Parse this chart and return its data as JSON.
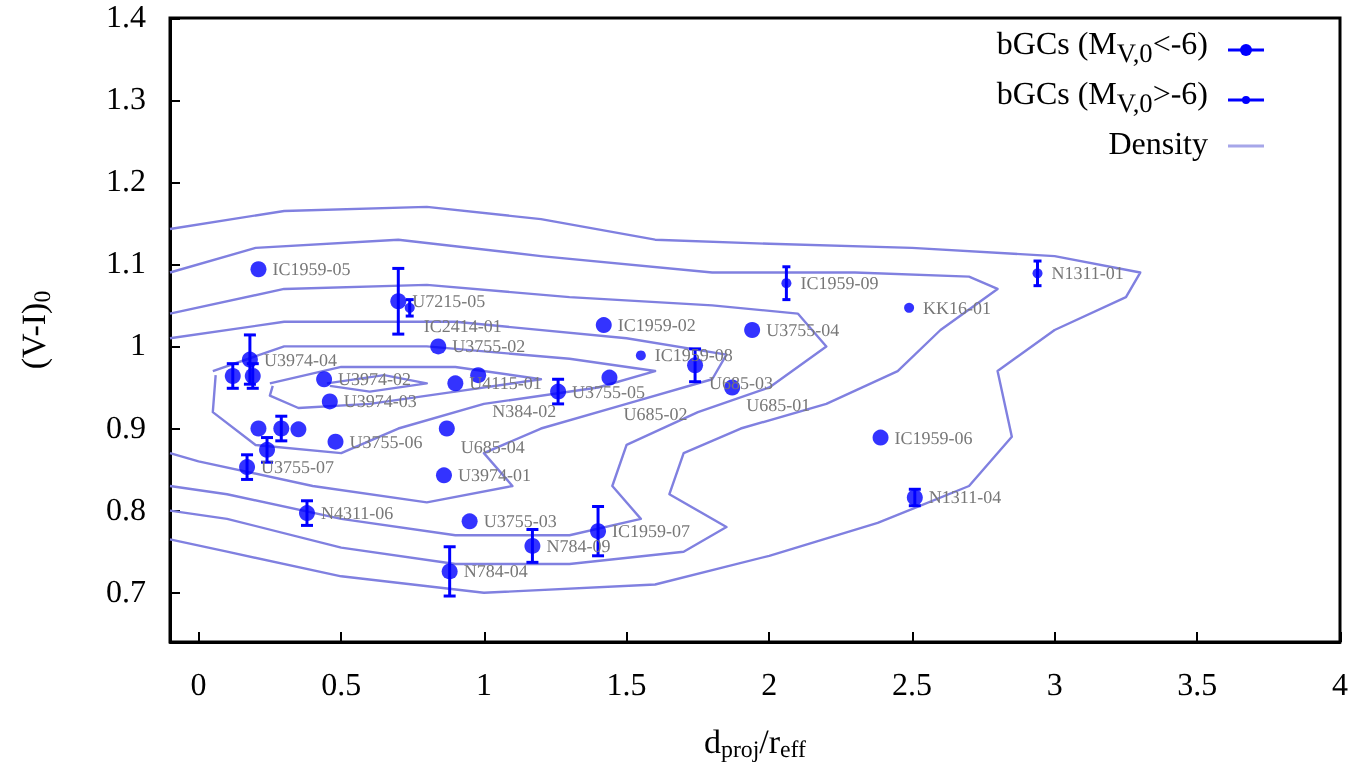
{
  "chart_data": {
    "type": "scatter",
    "xlabel": "d$_{proj}$/r$_{eff}$",
    "ylabel": "(V-I)$_{0}$",
    "xlim": [
      -0.1,
      4
    ],
    "ylim": [
      0.64,
      1.4
    ],
    "xticks": [
      0,
      0.5,
      1,
      1.5,
      2,
      2.5,
      3,
      3.5,
      4
    ],
    "yticks": [
      0.7,
      0.8,
      0.9,
      1,
      1.1,
      1.2,
      1.3,
      1.4
    ],
    "legend": "top right",
    "grid": false,
    "series": [
      {
        "name": "bGCs (M$_{V,0}$<-6)",
        "marker": "circle",
        "color": "#0000ff",
        "x": [
          0.21,
          0.7,
          0.84,
          0.18,
          0.12,
          0.19,
          0.44,
          0.46,
          0.9,
          0.98,
          1.26,
          0.21,
          0.29,
          0.35,
          0.24,
          0.48,
          0.17,
          0.87,
          0.86,
          0.38,
          0.95,
          1.17,
          0.88,
          1.4,
          1.42,
          1.94,
          1.74,
          1.44,
          1.87,
          2.39,
          2.51
        ],
        "values": [
          1.094,
          1.055,
          1.0,
          0.984,
          0.964,
          0.964,
          0.96,
          0.933,
          0.955,
          0.965,
          0.945,
          0.9,
          0.9,
          0.899,
          0.874,
          0.884,
          0.853,
          0.9,
          0.843,
          0.797,
          0.787,
          0.757,
          0.726,
          0.775,
          1.026,
          1.02,
          0.977,
          0.962,
          0.95,
          0.889,
          0.816
        ],
        "errors": [
          null,
          0.04,
          null,
          0.03,
          0.015,
          0.015,
          null,
          null,
          null,
          null,
          0.015,
          null,
          0.015,
          null,
          0.015,
          null,
          0.015,
          null,
          null,
          0.015,
          null,
          0.02,
          0.03,
          0.03,
          null,
          null,
          0.02,
          null,
          null,
          null,
          0.01
        ]
      },
      {
        "name": "bGCs (M$_{V,0}$>-6)",
        "marker": "circle",
        "color": "#0000ff",
        "x": [
          0.74,
          2.06,
          1.55,
          2.49,
          2.94
        ],
        "values": [
          1.047,
          1.077,
          0.989,
          1.047,
          1.089
        ],
        "errors": [
          0.01,
          0.02,
          null,
          null,
          0.015
        ]
      },
      {
        "name": "Density",
        "type": "line",
        "marker": "none",
        "color": "#8080e0",
        "x": [
          -0.1,
          0.3,
          0.8,
          1.2,
          1.6,
          2.0,
          2.5,
          3.0,
          3.3,
          3.25,
          3.0,
          2.8,
          2.85,
          2.7,
          2.38,
          2.0,
          1.6,
          1.0,
          0.5,
          0.1,
          -0.1,
          null,
          -0.1,
          0.2,
          0.7,
          1.2,
          1.8,
          2.3,
          2.7,
          2.8,
          2.6,
          2.45,
          2.2,
          1.9,
          1.7,
          1.65,
          1.85,
          1.7,
          1.3,
          0.9,
          0.5,
          0.1,
          -0.1,
          null,
          -0.1,
          0.3,
          0.8,
          1.3,
          1.8,
          2.1,
          2.2,
          2.0,
          1.75,
          1.5,
          1.45,
          1.55,
          1.3,
          0.9,
          0.5,
          0.1,
          -0.1,
          null,
          -0.1,
          0.3,
          0.9,
          1.5,
          1.85,
          1.8,
          1.5,
          1.2,
          1.0,
          1.1,
          0.8,
          0.4,
          0.0,
          -0.1,
          null,
          0.05,
          0.3,
          0.8,
          1.3,
          1.6,
          1.4,
          1.0,
          0.7,
          0.5,
          0.2,
          0.05,
          0.06,
          null,
          0.25,
          0.5,
          0.9,
          1.2,
          0.9,
          0.6,
          0.35,
          0.25,
          0.26,
          null,
          0.45,
          0.65,
          0.8,
          0.6,
          0.46
        ],
        "values": [
          1.143,
          1.165,
          1.17,
          1.155,
          1.13,
          1.125,
          1.12,
          1.11,
          1.09,
          1.06,
          1.02,
          0.97,
          0.89,
          0.83,
          0.785,
          0.745,
          0.71,
          0.7,
          0.72,
          0.75,
          0.765,
          null,
          1.09,
          1.12,
          1.13,
          1.11,
          1.09,
          1.09,
          1.085,
          1.07,
          1.02,
          0.97,
          0.93,
          0.9,
          0.87,
          0.82,
          0.78,
          0.75,
          0.735,
          0.735,
          0.755,
          0.79,
          0.8,
          null,
          1.04,
          1.07,
          1.075,
          1.06,
          1.05,
          1.04,
          1.0,
          0.95,
          0.92,
          0.88,
          0.83,
          0.79,
          0.77,
          0.77,
          0.79,
          0.82,
          0.83,
          null,
          1.01,
          1.03,
          1.03,
          1.01,
          0.99,
          0.96,
          0.93,
          0.9,
          0.87,
          0.83,
          0.81,
          0.83,
          0.86,
          0.87,
          null,
          0.97,
          1.0,
          1.0,
          0.985,
          0.97,
          0.95,
          0.93,
          0.9,
          0.87,
          0.88,
          0.92,
          0.965,
          null,
          0.955,
          0.975,
          0.975,
          0.96,
          0.945,
          0.93,
          0.925,
          0.94,
          0.952,
          null,
          0.955,
          0.965,
          0.955,
          0.945,
          0.952
        ]
      }
    ],
    "annotations": [
      {
        "text": "IC1959-05",
        "x": 0.21,
        "y": 1.094
      },
      {
        "text": "U7215-05",
        "x": 0.7,
        "y": 1.055
      },
      {
        "text": "IC2414-01",
        "x": 0.74,
        "y": 1.047
      },
      {
        "text": "U3755-02",
        "x": 0.84,
        "y": 1.0
      },
      {
        "text": "U3974-04",
        "x": 0.18,
        "y": 0.984
      },
      {
        "text": "U3974-02",
        "x": 0.44,
        "y": 0.96
      },
      {
        "text": "U3974-03",
        "x": 0.46,
        "y": 0.933
      },
      {
        "text": "U4115-01",
        "x": 0.9,
        "y": 0.955
      },
      {
        "text": "N384-02",
        "x": 0.98,
        "y": 0.965
      },
      {
        "text": "U3755-05",
        "x": 1.26,
        "y": 0.945
      },
      {
        "text": "U3755-06",
        "x": 0.48,
        "y": 0.884
      },
      {
        "text": "U3755-07",
        "x": 0.17,
        "y": 0.853
      },
      {
        "text": "U685-04",
        "x": 0.87,
        "y": 0.9
      },
      {
        "text": "U3974-01",
        "x": 0.86,
        "y": 0.843
      },
      {
        "text": "N4311-06",
        "x": 0.38,
        "y": 0.797
      },
      {
        "text": "U3755-03",
        "x": 0.95,
        "y": 0.787
      },
      {
        "text": "N784-09",
        "x": 1.17,
        "y": 0.757
      },
      {
        "text": "N784-04",
        "x": 0.88,
        "y": 0.726
      },
      {
        "text": "IC1959-07",
        "x": 1.4,
        "y": 0.775
      },
      {
        "text": "IC1959-02",
        "x": 1.42,
        "y": 1.026
      },
      {
        "text": "U3755-04",
        "x": 1.94,
        "y": 1.02
      },
      {
        "text": "IC1959-08",
        "x": 1.55,
        "y": 0.989
      },
      {
        "text": "U685-03",
        "x": 1.74,
        "y": 0.977
      },
      {
        "text": "U685-02",
        "x": 1.44,
        "y": 0.962
      },
      {
        "text": "U685-01",
        "x": 1.87,
        "y": 0.95
      },
      {
        "text": "IC1959-09",
        "x": 2.06,
        "y": 1.077
      },
      {
        "text": "IC1959-06",
        "x": 2.39,
        "y": 0.889
      },
      {
        "text": "KK16-01",
        "x": 2.49,
        "y": 1.047
      },
      {
        "text": "N1311-01",
        "x": 2.94,
        "y": 1.089
      },
      {
        "text": "N1311-04",
        "x": 2.51,
        "y": 0.816
      }
    ]
  }
}
